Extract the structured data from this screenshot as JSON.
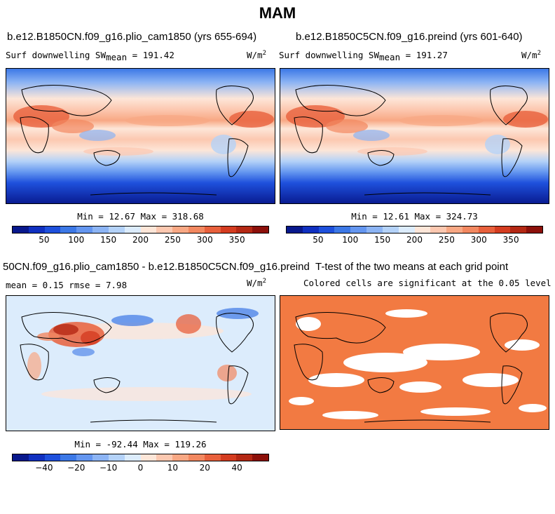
{
  "header": {
    "title": "MAM"
  },
  "panels": {
    "top_left": {
      "title": "b.e12.B1850CN.f09_g16.plio_cam1850 (yrs 655-694)",
      "var_label": "Surf downwelling SW",
      "mean_prefix": "mean",
      "mean_value": "= 191.42",
      "units": "W/m",
      "units_exp": "2",
      "minmax": "Min =  12.67 Max = 318.68"
    },
    "top_right": {
      "title": "b.e12.B1850C5CN.f09_g16.preind (yrs 601-640)",
      "var_label": "Surf downwelling SW",
      "mean_prefix": "mean",
      "mean_value": "= 191.27",
      "units": "W/m",
      "units_exp": "2",
      "minmax": "Min =  12.61 Max = 324.73"
    },
    "bottom_left": {
      "title": "50CN.f09_g16.plio_cam1850 - b.e12.B1850C5CN.f09_g16.preind",
      "stats": "mean =   0.15    rmse =   7.98",
      "units": "W/m",
      "units_exp": "2",
      "minmax": "Min = -92.44 Max = 119.26"
    },
    "bottom_right": {
      "title": "T-test of the two means at each grid point",
      "subtitle": "Colored cells are significant at the 0.05 level"
    }
  },
  "colorbars": {
    "abs": {
      "ticks": [
        "50",
        "100",
        "150",
        "200",
        "250",
        "300",
        "350"
      ],
      "colors": [
        "#08188c",
        "#1030c0",
        "#1e50dc",
        "#3c78e6",
        "#6496f0",
        "#8cb4f4",
        "#b4d2f8",
        "#dcecfc",
        "#fde6d8",
        "#fcc8b0",
        "#f8a884",
        "#f28860",
        "#e8603c",
        "#d43c20",
        "#b42814",
        "#8c100a"
      ]
    },
    "diff": {
      "ticks": [
        "−40",
        "−20",
        "−10",
        "0",
        "10",
        "20",
        "40"
      ],
      "colors": [
        "#08188c",
        "#1030c0",
        "#1e50dc",
        "#3c78e6",
        "#6496f0",
        "#8cb4f4",
        "#b4d2f8",
        "#dcecfc",
        "#fde6d8",
        "#fcc8b0",
        "#f8a884",
        "#f28860",
        "#e8603c",
        "#d43c20",
        "#b42814",
        "#8c100a"
      ]
    }
  }
}
